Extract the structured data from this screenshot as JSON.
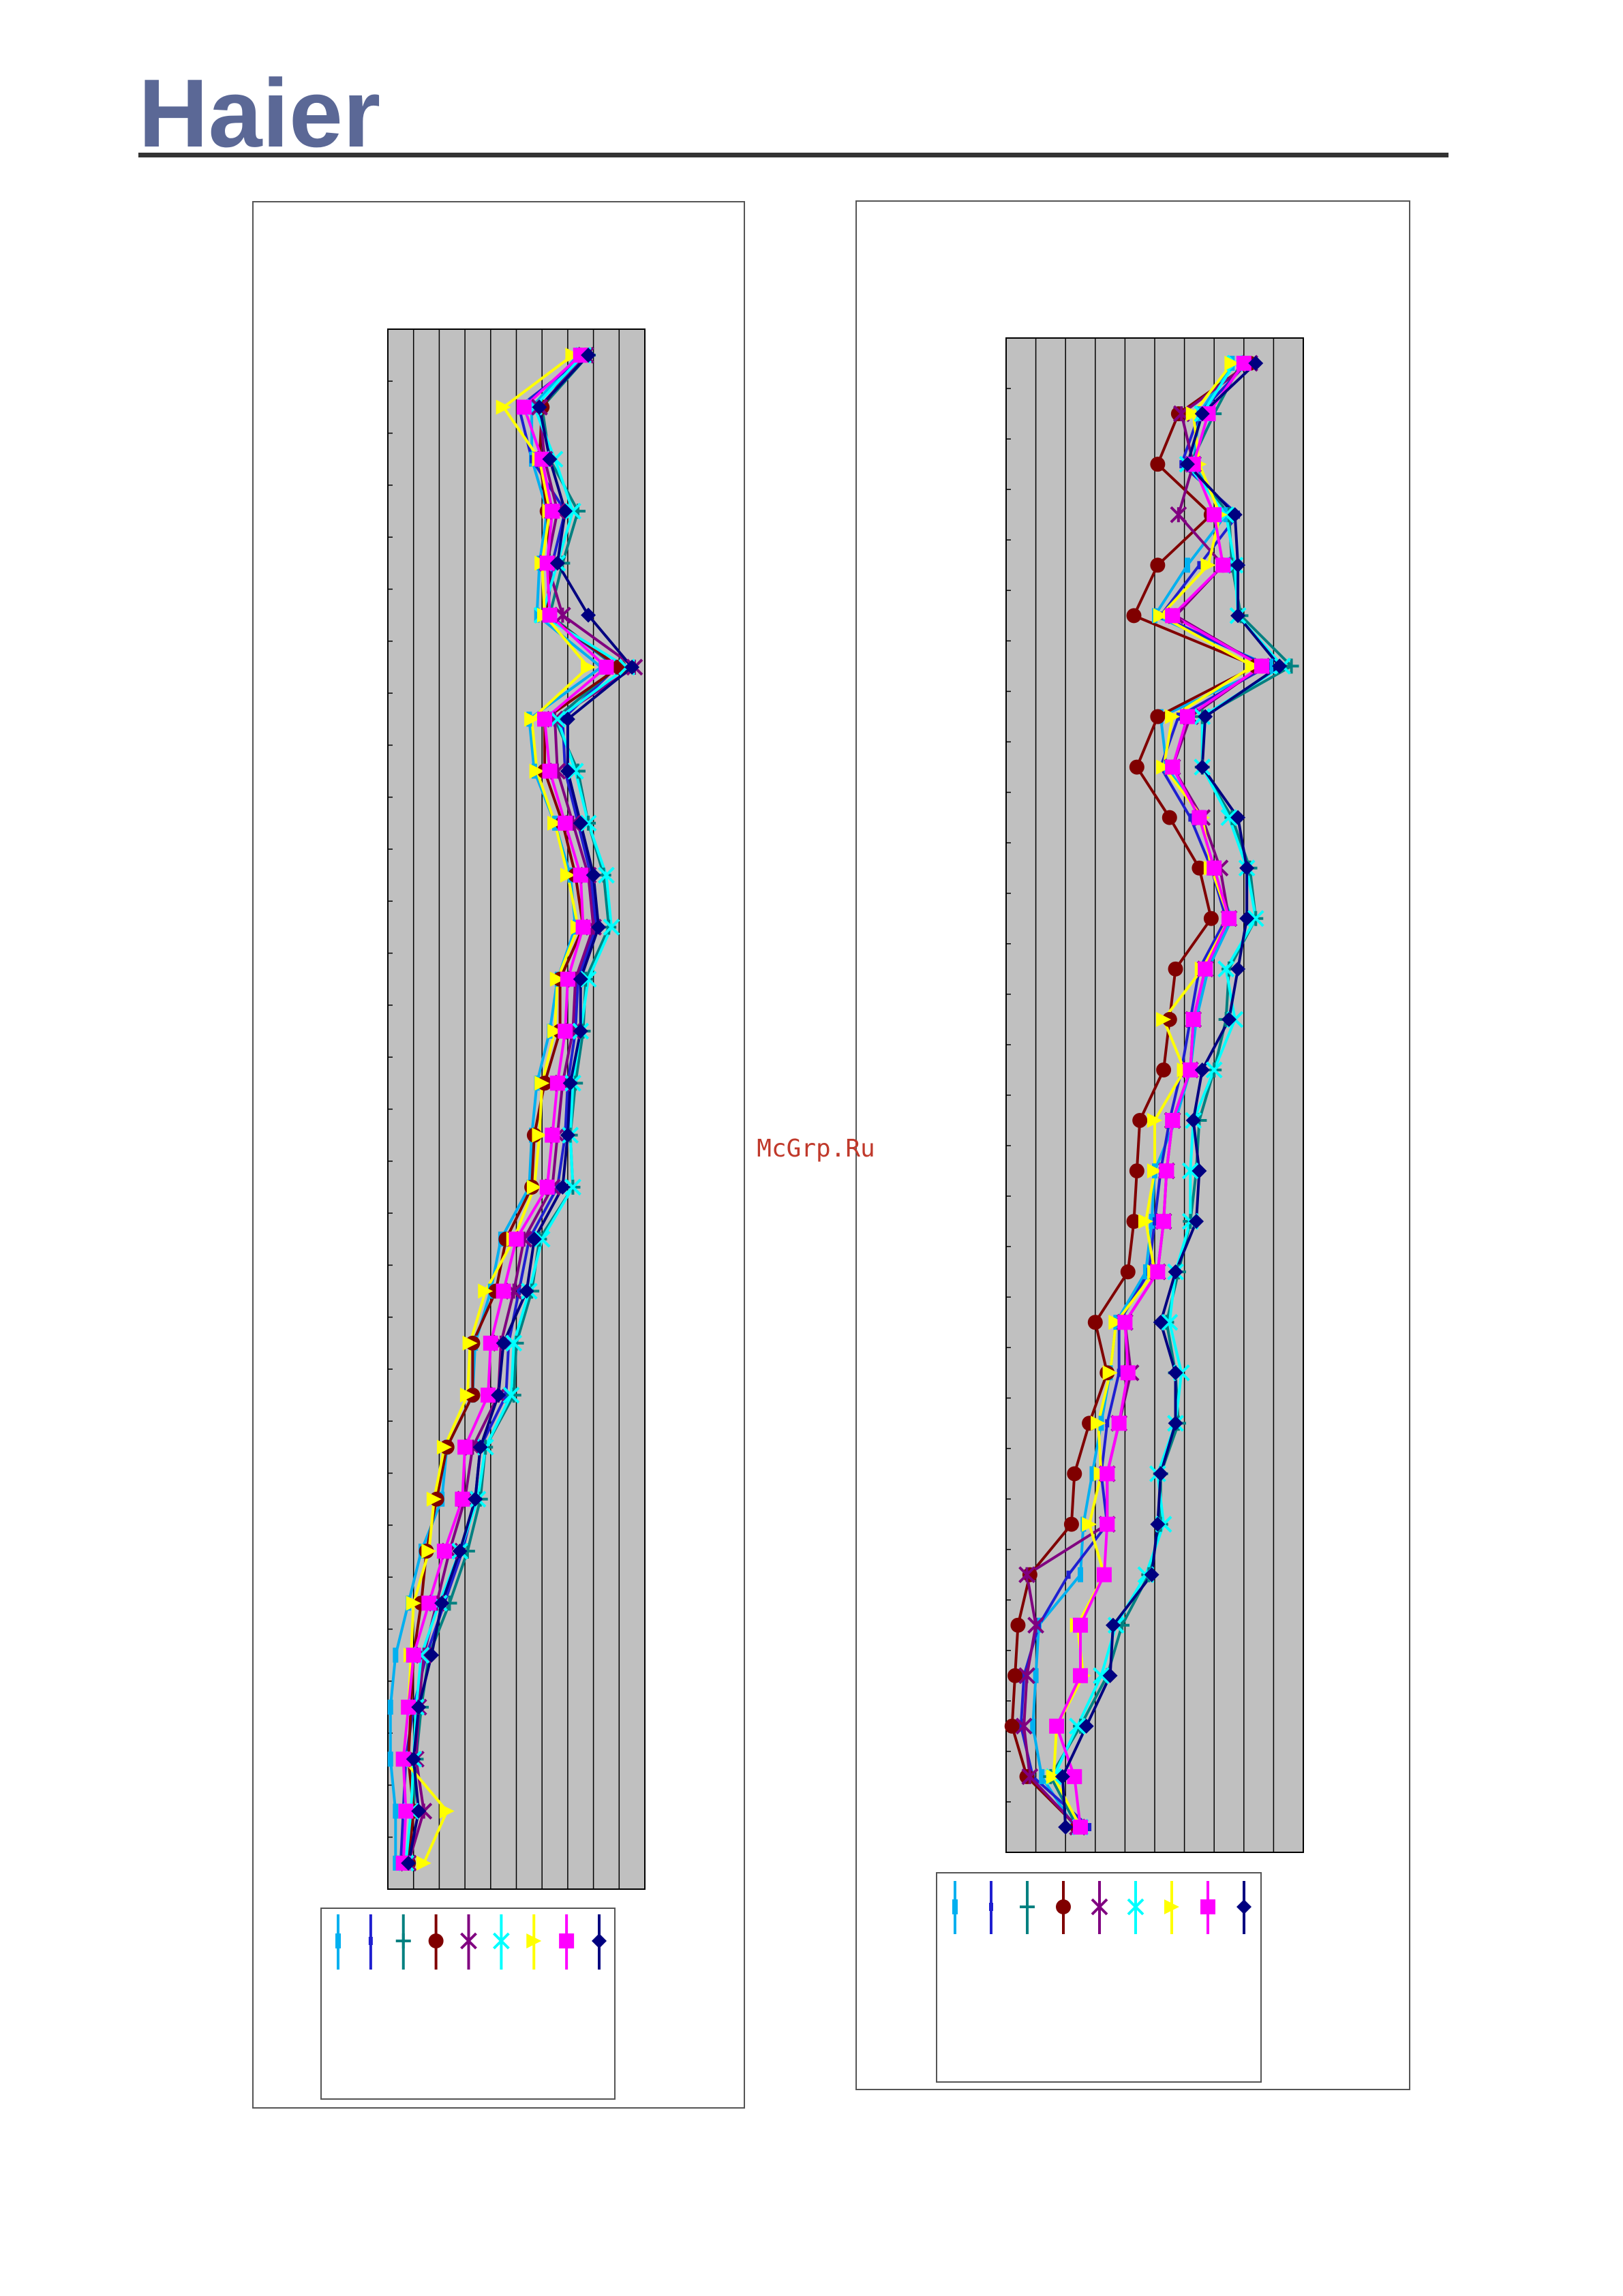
{
  "header": {
    "logo": "Haier"
  },
  "watermark": "McGrp.Ru",
  "chart_data": [
    {
      "type": "line",
      "orientation": "vertical",
      "grid": true,
      "xlim": [
        0,
        10
      ],
      "xticks": [
        0,
        1,
        2,
        3,
        4,
        5,
        6,
        7,
        8,
        9,
        10
      ],
      "categories": [
        null,
        null,
        null,
        null,
        null,
        null,
        null,
        null,
        null,
        null,
        null,
        null,
        null,
        null,
        null,
        null,
        null,
        null,
        null,
        null,
        null,
        null,
        null,
        null,
        null,
        null,
        null,
        null,
        null,
        null
      ],
      "series": [
        {
          "color": "#00b0f0",
          "marker": "bar",
          "values": [
            7.4,
            5.6,
            5.6,
            6.2,
            5.9,
            5.8,
            8.3,
            5.5,
            5.7,
            6.5,
            7.1,
            7.3,
            6.6,
            6.3,
            5.8,
            5.6,
            5.5,
            4.4,
            4.0,
            3.4,
            3.3,
            2.3,
            2.1,
            1.3,
            0.8,
            0.3,
            0.1,
            0.1,
            0.3,
            0.3
          ]
        },
        {
          "color": "#1f1fd0",
          "marker": "thinbar",
          "values": [
            7.7,
            5.1,
            5.6,
            6.9,
            6.4,
            6.2,
            8.9,
            6.8,
            6.9,
            7.4,
            7.9,
            8.1,
            7.4,
            7.3,
            7.0,
            6.9,
            6.6,
            5.5,
            5.1,
            4.7,
            4.6,
            3.6,
            3.4,
            2.9,
            2.2,
            1.5,
            1.0,
            0.7,
            0.6,
            0.5
          ]
        },
        {
          "color": "#008080",
          "marker": "plus",
          "values": [
            7.8,
            6.0,
            6.3,
            7.4,
            6.8,
            6.3,
            8.9,
            6.5,
            7.4,
            7.8,
            8.4,
            8.6,
            7.7,
            7.6,
            7.3,
            7.1,
            7.2,
            5.9,
            5.6,
            5.0,
            4.9,
            3.8,
            3.6,
            3.1,
            2.4,
            1.6,
            1.3,
            1.1,
            1.0,
            0.7
          ]
        },
        {
          "color": "#800000",
          "marker": "circle",
          "values": [
            7.5,
            6.0,
            5.9,
            6.2,
            6.3,
            6.2,
            9.0,
            6.1,
            6.1,
            6.8,
            7.3,
            7.6,
            6.7,
            6.7,
            6.1,
            5.7,
            5.6,
            4.6,
            4.2,
            3.3,
            3.3,
            2.3,
            1.9,
            1.5,
            1.3,
            1.0,
            0.9,
            0.8,
            1.0,
            0.8
          ]
        },
        {
          "color": "#800080",
          "marker": "star",
          "values": [
            7.7,
            5.9,
            6.1,
            6.6,
            6.2,
            6.8,
            9.6,
            6.5,
            6.6,
            7.2,
            7.8,
            8.0,
            7.3,
            7.2,
            6.8,
            6.6,
            6.4,
            5.3,
            4.9,
            4.4,
            4.3,
            3.3,
            3.0,
            2.4,
            1.9,
            1.4,
            1.2,
            1.1,
            1.4,
            0.8
          ]
        },
        {
          "color": "#00ffff",
          "marker": "x",
          "values": [
            7.6,
            5.7,
            6.5,
            7.2,
            6.6,
            6.0,
            9.3,
            6.6,
            7.3,
            7.8,
            8.5,
            8.7,
            7.8,
            7.5,
            7.2,
            7.1,
            7.2,
            6.0,
            5.5,
            4.9,
            4.8,
            3.8,
            3.5,
            2.8,
            2.0,
            1.3,
            1.1,
            1.0,
            0.9,
            0.7
          ]
        },
        {
          "color": "#ffff00",
          "marker": "triangle",
          "values": [
            7.2,
            4.5,
            5.9,
            6.3,
            6.0,
            6.1,
            7.8,
            5.6,
            5.8,
            6.5,
            7.0,
            7.4,
            6.6,
            6.5,
            6.0,
            5.9,
            5.7,
            4.9,
            3.8,
            3.2,
            3.1,
            2.2,
            1.8,
            1.6,
            1.0,
            0.9,
            0.8,
            0.6,
            2.3,
            1.4
          ]
        },
        {
          "color": "#ff00ff",
          "marker": "square",
          "values": [
            7.5,
            5.3,
            6.0,
            6.4,
            6.2,
            6.3,
            8.5,
            6.1,
            6.3,
            6.9,
            7.5,
            7.6,
            7.0,
            6.9,
            6.6,
            6.4,
            6.2,
            5.0,
            4.5,
            4.0,
            3.9,
            3.0,
            2.9,
            2.2,
            1.6,
            1.0,
            0.8,
            0.6,
            0.7,
            0.6
          ]
        },
        {
          "color": "#000080",
          "marker": "diamond",
          "values": [
            7.8,
            5.9,
            6.3,
            6.9,
            6.6,
            7.8,
            9.5,
            7.0,
            7.0,
            7.5,
            8.0,
            8.2,
            7.5,
            7.5,
            7.1,
            7.0,
            6.8,
            5.7,
            5.4,
            4.5,
            4.3,
            3.6,
            3.4,
            2.8,
            2.1,
            1.7,
            1.2,
            1.0,
            1.2,
            0.8
          ]
        }
      ]
    },
    {
      "type": "line",
      "orientation": "vertical",
      "grid": true,
      "xlim": [
        0,
        10
      ],
      "xticks": [
        0,
        1,
        2,
        3,
        4,
        5,
        6,
        7,
        8,
        9,
        10
      ],
      "categories": [
        null,
        null,
        null,
        null,
        null,
        null,
        null,
        null,
        null,
        null,
        null,
        null,
        null,
        null,
        null,
        null,
        null,
        null,
        null,
        null,
        null,
        null,
        null,
        null,
        null,
        null,
        null,
        null,
        null,
        null
      ],
      "series": [
        {
          "color": "#00b0f0",
          "marker": "bar",
          "values": [
            7.6,
            6.5,
            6.3,
            7.4,
            6.1,
            5.0,
            8.9,
            5.2,
            5.4,
            6.6,
            6.9,
            7.6,
            6.8,
            6.4,
            6.2,
            5.7,
            5.0,
            4.9,
            4.7,
            3.7,
            3.5,
            3.2,
            2.9,
            2.6,
            2.5,
            1.1,
            1.0,
            0.9,
            1.2,
            2.3
          ]
        },
        {
          "color": "#1f1fd0",
          "marker": "thinbar",
          "values": [
            8.1,
            6.5,
            5.9,
            7.8,
            6.5,
            5.2,
            8.8,
            5.8,
            5.2,
            6.2,
            6.9,
            7.4,
            6.5,
            6.2,
            5.9,
            5.5,
            5.2,
            5.0,
            4.8,
            3.8,
            3.8,
            3.4,
            3.2,
            3.4,
            2.1,
            1.1,
            0.6,
            0.5,
            0.9,
            2.8
          ]
        },
        {
          "color": "#008080",
          "marker": "plus",
          "values": [
            7.9,
            7.0,
            6.2,
            7.5,
            7.6,
            7.9,
            9.6,
            6.6,
            6.6,
            7.6,
            8.2,
            8.4,
            7.5,
            7.4,
            7.0,
            6.5,
            6.4,
            6.2,
            5.8,
            5.4,
            5.7,
            5.8,
            5.2,
            5.2,
            4.8,
            3.9,
            3.4,
            2.5,
            1.5,
            2.4
          ]
        },
        {
          "color": "#800000",
          "marker": "circle",
          "values": [
            8.2,
            5.8,
            5.1,
            6.9,
            5.1,
            4.3,
            8.4,
            5.1,
            4.4,
            5.5,
            6.5,
            6.9,
            5.7,
            5.5,
            5.3,
            4.5,
            4.4,
            4.3,
            4.1,
            3.0,
            3.4,
            2.8,
            2.3,
            2.2,
            0.8,
            0.4,
            0.3,
            0.2,
            0.7,
            2.4
          ]
        },
        {
          "color": "#800080",
          "marker": "star",
          "values": [
            8.2,
            5.9,
            6.3,
            5.8,
            7.3,
            5.7,
            8.6,
            6.2,
            5.6,
            6.6,
            7.2,
            7.5,
            6.7,
            6.3,
            6.2,
            5.6,
            5.4,
            5.3,
            5.1,
            4.0,
            4.2,
            3.8,
            3.4,
            3.4,
            0.7,
            1.0,
            0.7,
            0.6,
            0.8,
            2.4
          ]
        },
        {
          "color": "#00ffff",
          "marker": "x",
          "values": [
            7.7,
            6.6,
            6.1,
            7.4,
            7.7,
            7.8,
            9.3,
            6.6,
            6.6,
            7.5,
            8.1,
            8.4,
            7.4,
            7.7,
            7.0,
            6.3,
            6.2,
            6.2,
            5.7,
            5.5,
            5.9,
            5.7,
            5.1,
            5.3,
            4.7,
            3.7,
            3.2,
            2.4,
            1.6,
            2.5
          ]
        },
        {
          "color": "#ffff00",
          "marker": "triangle",
          "values": [
            7.6,
            6.3,
            6.5,
            7.2,
            6.8,
            5.2,
            8.3,
            5.6,
            5.3,
            6.6,
            6.9,
            7.5,
            6.6,
            5.3,
            6.0,
            5.0,
            5.0,
            4.7,
            5.0,
            3.7,
            3.5,
            3.1,
            3.2,
            2.8,
            3.3,
            2.4,
            2.6,
            1.7,
            1.6,
            2.5
          ]
        },
        {
          "color": "#ff00ff",
          "marker": "square",
          "values": [
            8.0,
            6.8,
            6.3,
            7.0,
            7.3,
            5.6,
            8.6,
            6.1,
            5.6,
            6.5,
            7.0,
            7.5,
            6.7,
            6.3,
            6.2,
            5.6,
            5.4,
            5.3,
            5.1,
            4.0,
            4.1,
            3.8,
            3.4,
            3.4,
            3.3,
            2.5,
            2.5,
            1.7,
            2.3,
            2.5
          ]
        },
        {
          "color": "#000080",
          "marker": "diamond",
          "values": [
            8.4,
            6.6,
            6.1,
            7.7,
            7.8,
            7.8,
            9.2,
            6.7,
            6.6,
            7.8,
            8.1,
            8.1,
            7.8,
            7.5,
            6.6,
            6.3,
            6.5,
            6.4,
            5.7,
            5.2,
            5.7,
            5.7,
            5.2,
            5.1,
            4.9,
            3.6,
            3.5,
            2.7,
            1.9,
            2.0
          ]
        }
      ]
    }
  ]
}
